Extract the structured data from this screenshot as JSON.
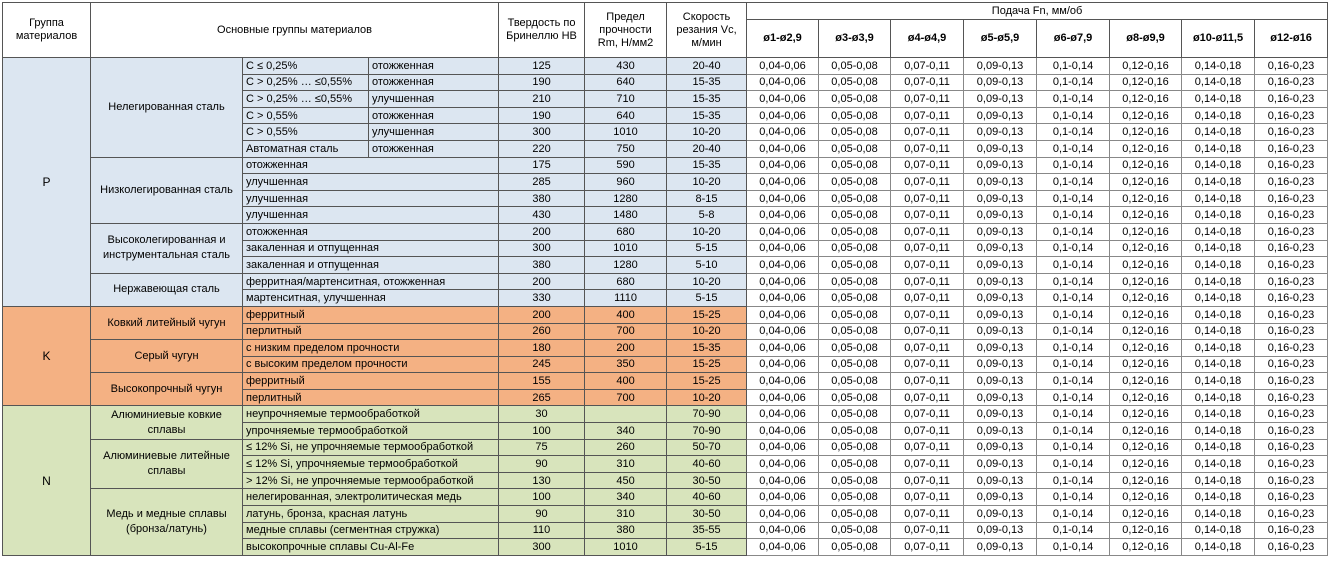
{
  "header": {
    "group": "Группа материалов",
    "main": "Основные группы материалов",
    "hb": "Твердость по Бринеллю HB",
    "rm": "Предел прочности Rm, Н/мм2",
    "vc": "Скорость резания Vc, м/мин",
    "feed": "Подача Fn, мм/об",
    "sizes": [
      "ø1-ø2,9",
      "ø3-ø3,9",
      "ø4-ø4,9",
      "ø5-ø5,9",
      "ø6-ø7,9",
      "ø8-ø9,9",
      "ø10-ø11,5",
      "ø12-ø16"
    ]
  },
  "groups": [
    {
      "code": "P",
      "color": "#dce6f1",
      "subgroups": [
        {
          "name": "Нелегированная сталь",
          "rows": [
            {
              "condition": "C ≤ 0,25%",
              "state": "отожженная",
              "hb": 125,
              "rm": 430,
              "vc": "20-40",
              "feeds": [
                "0,04-0,06",
                "0,05-0,08",
                "0,07-0,11",
                "0,09-0,13",
                "0,1-0,14",
                "0,12-0,16",
                "0,14-0,18",
                "0,16-0,23"
              ]
            },
            {
              "condition": "C > 0,25% … ≤0,55%",
              "state": "отожженная",
              "hb": 190,
              "rm": 640,
              "vc": "15-35",
              "feeds": [
                "0,04-0,06",
                "0,05-0,08",
                "0,07-0,11",
                "0,09-0,13",
                "0,1-0,14",
                "0,12-0,16",
                "0,14-0,18",
                "0,16-0,23"
              ]
            },
            {
              "condition": "C > 0,25% … ≤0,55%",
              "state": "улучшенная",
              "hb": 210,
              "rm": 710,
              "vc": "15-35",
              "feeds": [
                "0,04-0,06",
                "0,05-0,08",
                "0,07-0,11",
                "0,09-0,13",
                "0,1-0,14",
                "0,12-0,16",
                "0,14-0,18",
                "0,16-0,23"
              ]
            },
            {
              "condition": "C > 0,55%",
              "state": "отожженная",
              "hb": 190,
              "rm": 640,
              "vc": "15-35",
              "feeds": [
                "0,04-0,06",
                "0,05-0,08",
                "0,07-0,11",
                "0,09-0,13",
                "0,1-0,14",
                "0,12-0,16",
                "0,14-0,18",
                "0,16-0,23"
              ]
            },
            {
              "condition": "C > 0,55%",
              "state": "улучшенная",
              "hb": 300,
              "rm": 1010,
              "vc": "10-20",
              "feeds": [
                "0,04-0,06",
                "0,05-0,08",
                "0,07-0,11",
                "0,09-0,13",
                "0,1-0,14",
                "0,12-0,16",
                "0,14-0,18",
                "0,16-0,23"
              ]
            },
            {
              "condition": "Автоматная сталь",
              "state": "отожженная",
              "hb": 220,
              "rm": 750,
              "vc": "20-40",
              "feeds": [
                "0,04-0,06",
                "0,05-0,08",
                "0,07-0,11",
                "0,09-0,13",
                "0,1-0,14",
                "0,12-0,16",
                "0,14-0,18",
                "0,16-0,23"
              ]
            }
          ]
        },
        {
          "name": "Низколегированная сталь",
          "rows": [
            {
              "condition": "отожженная",
              "hb": 175,
              "rm": 590,
              "vc": "15-35",
              "feeds": [
                "0,04-0,06",
                "0,05-0,08",
                "0,07-0,11",
                "0,09-0,13",
                "0,1-0,14",
                "0,12-0,16",
                "0,14-0,18",
                "0,16-0,23"
              ]
            },
            {
              "condition": "улучшенная",
              "hb": 285,
              "rm": 960,
              "vc": "10-20",
              "feeds": [
                "0,04-0,06",
                "0,05-0,08",
                "0,07-0,11",
                "0,09-0,13",
                "0,1-0,14",
                "0,12-0,16",
                "0,14-0,18",
                "0,16-0,23"
              ]
            },
            {
              "condition": "улучшенная",
              "hb": 380,
              "rm": 1280,
              "vc": "8-15",
              "feeds": [
                "0,04-0,06",
                "0,05-0,08",
                "0,07-0,11",
                "0,09-0,13",
                "0,1-0,14",
                "0,12-0,16",
                "0,14-0,18",
                "0,16-0,23"
              ]
            },
            {
              "condition": "улучшенная",
              "hb": 430,
              "rm": 1480,
              "vc": "5-8",
              "feeds": [
                "0,04-0,06",
                "0,05-0,08",
                "0,07-0,11",
                "0,09-0,13",
                "0,1-0,14",
                "0,12-0,16",
                "0,14-0,18",
                "0,16-0,23"
              ]
            }
          ]
        },
        {
          "name": "Высоколегированная и инструментальная сталь",
          "rows": [
            {
              "condition": "отожженная",
              "hb": 200,
              "rm": 680,
              "vc": "10-20",
              "feeds": [
                "0,04-0,06",
                "0,05-0,08",
                "0,07-0,11",
                "0,09-0,13",
                "0,1-0,14",
                "0,12-0,16",
                "0,14-0,18",
                "0,16-0,23"
              ]
            },
            {
              "condition": "закаленная и отпущенная",
              "hb": 300,
              "rm": 1010,
              "vc": "5-15",
              "feeds": [
                "0,04-0,06",
                "0,05-0,08",
                "0,07-0,11",
                "0,09-0,13",
                "0,1-0,14",
                "0,12-0,16",
                "0,14-0,18",
                "0,16-0,23"
              ]
            },
            {
              "condition": "закаленная и отпущенная",
              "hb": 380,
              "rm": 1280,
              "vc": "5-10",
              "feeds": [
                "0,04-0,06",
                "0,05-0,08",
                "0,07-0,11",
                "0,09-0,13",
                "0,1-0,14",
                "0,12-0,16",
                "0,14-0,18",
                "0,16-0,23"
              ]
            }
          ]
        },
        {
          "name": "Нержавеющая сталь",
          "rows": [
            {
              "condition": "ферритная/мартенситная, отожженная",
              "hb": 200,
              "rm": 680,
              "vc": "10-20",
              "feeds": [
                "0,04-0,06",
                "0,05-0,08",
                "0,07-0,11",
                "0,09-0,13",
                "0,1-0,14",
                "0,12-0,16",
                "0,14-0,18",
                "0,16-0,23"
              ]
            },
            {
              "condition": "мартенситная, улучшенная",
              "hb": 330,
              "rm": 1110,
              "vc": "5-15",
              "feeds": [
                "0,04-0,06",
                "0,05-0,08",
                "0,07-0,11",
                "0,09-0,13",
                "0,1-0,14",
                "0,12-0,16",
                "0,14-0,18",
                "0,16-0,23"
              ]
            }
          ]
        }
      ]
    },
    {
      "code": "K",
      "color": "#f4b183",
      "subgroups": [
        {
          "name": "Ковкий литейный чугун",
          "rows": [
            {
              "condition": "ферритный",
              "hb": 200,
              "rm": 400,
              "vc": "15-25",
              "feeds": [
                "0,04-0,06",
                "0,05-0,08",
                "0,07-0,11",
                "0,09-0,13",
                "0,1-0,14",
                "0,12-0,16",
                "0,14-0,18",
                "0,16-0,23"
              ]
            },
            {
              "condition": "перлитный",
              "hb": 260,
              "rm": 700,
              "vc": "10-20",
              "feeds": [
                "0,04-0,06",
                "0,05-0,08",
                "0,07-0,11",
                "0,09-0,13",
                "0,1-0,14",
                "0,12-0,16",
                "0,14-0,18",
                "0,16-0,23"
              ]
            }
          ]
        },
        {
          "name": "Серый чугун",
          "rows": [
            {
              "condition": "с низким пределом прочности",
              "hb": 180,
              "rm": 200,
              "vc": "15-35",
              "feeds": [
                "0,04-0,06",
                "0,05-0,08",
                "0,07-0,11",
                "0,09-0,13",
                "0,1-0,14",
                "0,12-0,16",
                "0,14-0,18",
                "0,16-0,23"
              ]
            },
            {
              "condition": "с высоким пределом прочности",
              "hb": 245,
              "rm": 350,
              "vc": "15-25",
              "feeds": [
                "0,04-0,06",
                "0,05-0,08",
                "0,07-0,11",
                "0,09-0,13",
                "0,1-0,14",
                "0,12-0,16",
                "0,14-0,18",
                "0,16-0,23"
              ]
            }
          ]
        },
        {
          "name": "Высокопрочный чугун",
          "rows": [
            {
              "condition": "ферритный",
              "hb": 155,
              "rm": 400,
              "vc": "15-25",
              "feeds": [
                "0,04-0,06",
                "0,05-0,08",
                "0,07-0,11",
                "0,09-0,13",
                "0,1-0,14",
                "0,12-0,16",
                "0,14-0,18",
                "0,16-0,23"
              ]
            },
            {
              "condition": "перлитный",
              "hb": 265,
              "rm": 700,
              "vc": "10-20",
              "feeds": [
                "0,04-0,06",
                "0,05-0,08",
                "0,07-0,11",
                "0,09-0,13",
                "0,1-0,14",
                "0,12-0,16",
                "0,14-0,18",
                "0,16-0,23"
              ]
            }
          ]
        }
      ]
    },
    {
      "code": "N",
      "color": "#d8e4bc",
      "subgroups": [
        {
          "name": "Алюминиевые ковкие сплавы",
          "rows": [
            {
              "condition": "неупрочняемые термообработкой",
              "hb": 30,
              "rm": null,
              "vc": "70-90",
              "feeds": [
                "0,04-0,06",
                "0,05-0,08",
                "0,07-0,11",
                "0,09-0,13",
                "0,1-0,14",
                "0,12-0,16",
                "0,14-0,18",
                "0,16-0,23"
              ]
            },
            {
              "condition": "упрочняемые термообработкой",
              "hb": 100,
              "rm": 340,
              "vc": "70-90",
              "feeds": [
                "0,04-0,06",
                "0,05-0,08",
                "0,07-0,11",
                "0,09-0,13",
                "0,1-0,14",
                "0,12-0,16",
                "0,14-0,18",
                "0,16-0,23"
              ]
            }
          ]
        },
        {
          "name": "Алюминиевые литейные сплавы",
          "rows": [
            {
              "condition": "≤ 12% Si, не упрочняемые термообработкой",
              "hb": 75,
              "rm": 260,
              "vc": "50-70",
              "feeds": [
                "0,04-0,06",
                "0,05-0,08",
                "0,07-0,11",
                "0,09-0,13",
                "0,1-0,14",
                "0,12-0,16",
                "0,14-0,18",
                "0,16-0,23"
              ]
            },
            {
              "condition": "≤ 12% Si, упрочняемые термообработкой",
              "hb": 90,
              "rm": 310,
              "vc": "40-60",
              "feeds": [
                "0,04-0,06",
                "0,05-0,08",
                "0,07-0,11",
                "0,09-0,13",
                "0,1-0,14",
                "0,12-0,16",
                "0,14-0,18",
                "0,16-0,23"
              ]
            },
            {
              "condition": "> 12% Si, не упрочняемые термообработкой",
              "hb": 130,
              "rm": 450,
              "vc": "30-50",
              "feeds": [
                "0,04-0,06",
                "0,05-0,08",
                "0,07-0,11",
                "0,09-0,13",
                "0,1-0,14",
                "0,12-0,16",
                "0,14-0,18",
                "0,16-0,23"
              ]
            }
          ]
        },
        {
          "name": "Медь и медные сплавы (бронза/латунь)",
          "rows": [
            {
              "condition": "нелегированная, электролитическая медь",
              "hb": 100,
              "rm": 340,
              "vc": "40-60",
              "feeds": [
                "0,04-0,06",
                "0,05-0,08",
                "0,07-0,11",
                "0,09-0,13",
                "0,1-0,14",
                "0,12-0,16",
                "0,14-0,18",
                "0,16-0,23"
              ]
            },
            {
              "condition": "латунь, бронза, красная латунь",
              "hb": 90,
              "rm": 310,
              "vc": "30-50",
              "feeds": [
                "0,04-0,06",
                "0,05-0,08",
                "0,07-0,11",
                "0,09-0,13",
                "0,1-0,14",
                "0,12-0,16",
                "0,14-0,18",
                "0,16-0,23"
              ]
            },
            {
              "condition": "медные сплавы (сегментная стружка)",
              "hb": 110,
              "rm": 380,
              "vc": "35-55",
              "feeds": [
                "0,04-0,06",
                "0,05-0,08",
                "0,07-0,11",
                "0,09-0,13",
                "0,1-0,14",
                "0,12-0,16",
                "0,14-0,18",
                "0,16-0,23"
              ]
            },
            {
              "condition": "высокопрочные сплавы Cu-Al-Fe",
              "hb": 300,
              "rm": 1010,
              "vc": "5-15",
              "feeds": [
                "0,04-0,06",
                "0,05-0,08",
                "0,07-0,11",
                "0,09-0,13",
                "0,1-0,14",
                "0,12-0,16",
                "0,14-0,18",
                "0,16-0,23"
              ]
            }
          ]
        }
      ]
    }
  ]
}
